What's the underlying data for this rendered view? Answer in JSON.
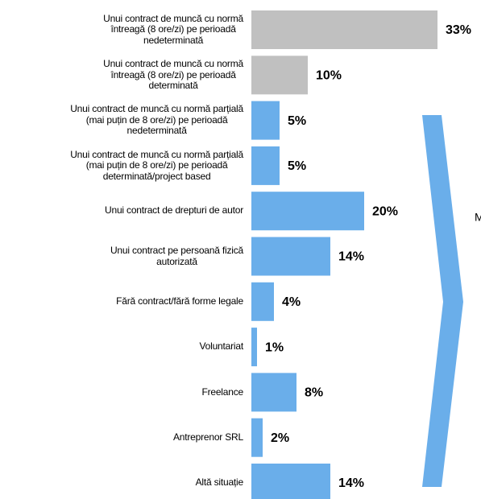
{
  "chart_data": {
    "type": "bar",
    "orientation": "horizontal",
    "categories": [
      "Unui contract de muncă cu normă\nîntreagă (8 ore/zi) pe perioadă\nnedeterminată",
      "Unui contract de muncă cu normă\nîntreagă (8 ore/zi) pe perioadă\ndeterminată",
      "Unui contract de muncă cu normă parțială\n(mai puțin de 8 ore/zi) pe perioadă\nnedeterminată",
      "Unui contract de muncă cu normă parțială\n(mai puțin de 8 ore/zi) pe perioadă\ndeterminată/project based",
      "Unui contract de drepturi de autor",
      "Unui contract pe persoană fizică\nautorizată",
      "Fără contract/fără forme legale",
      "Voluntariat",
      "Freelance",
      "Antreprenor SRL",
      "Altă situație"
    ],
    "values": [
      33,
      10,
      5,
      5,
      20,
      14,
      4,
      1,
      8,
      2,
      14
    ],
    "value_labels": [
      "33%",
      "10%",
      "5%",
      "5%",
      "20%",
      "14%",
      "4%",
      "1%",
      "8%",
      "2%",
      "14%"
    ],
    "colors": [
      "#c0c0c0",
      "#c0c0c0",
      "#6aaeea",
      "#6aaeea",
      "#6aaeea",
      "#6aaeea",
      "#6aaeea",
      "#6aaeea",
      "#6aaeea",
      "#6aaeea",
      "#6aaeea"
    ],
    "annotation": "M"
  }
}
